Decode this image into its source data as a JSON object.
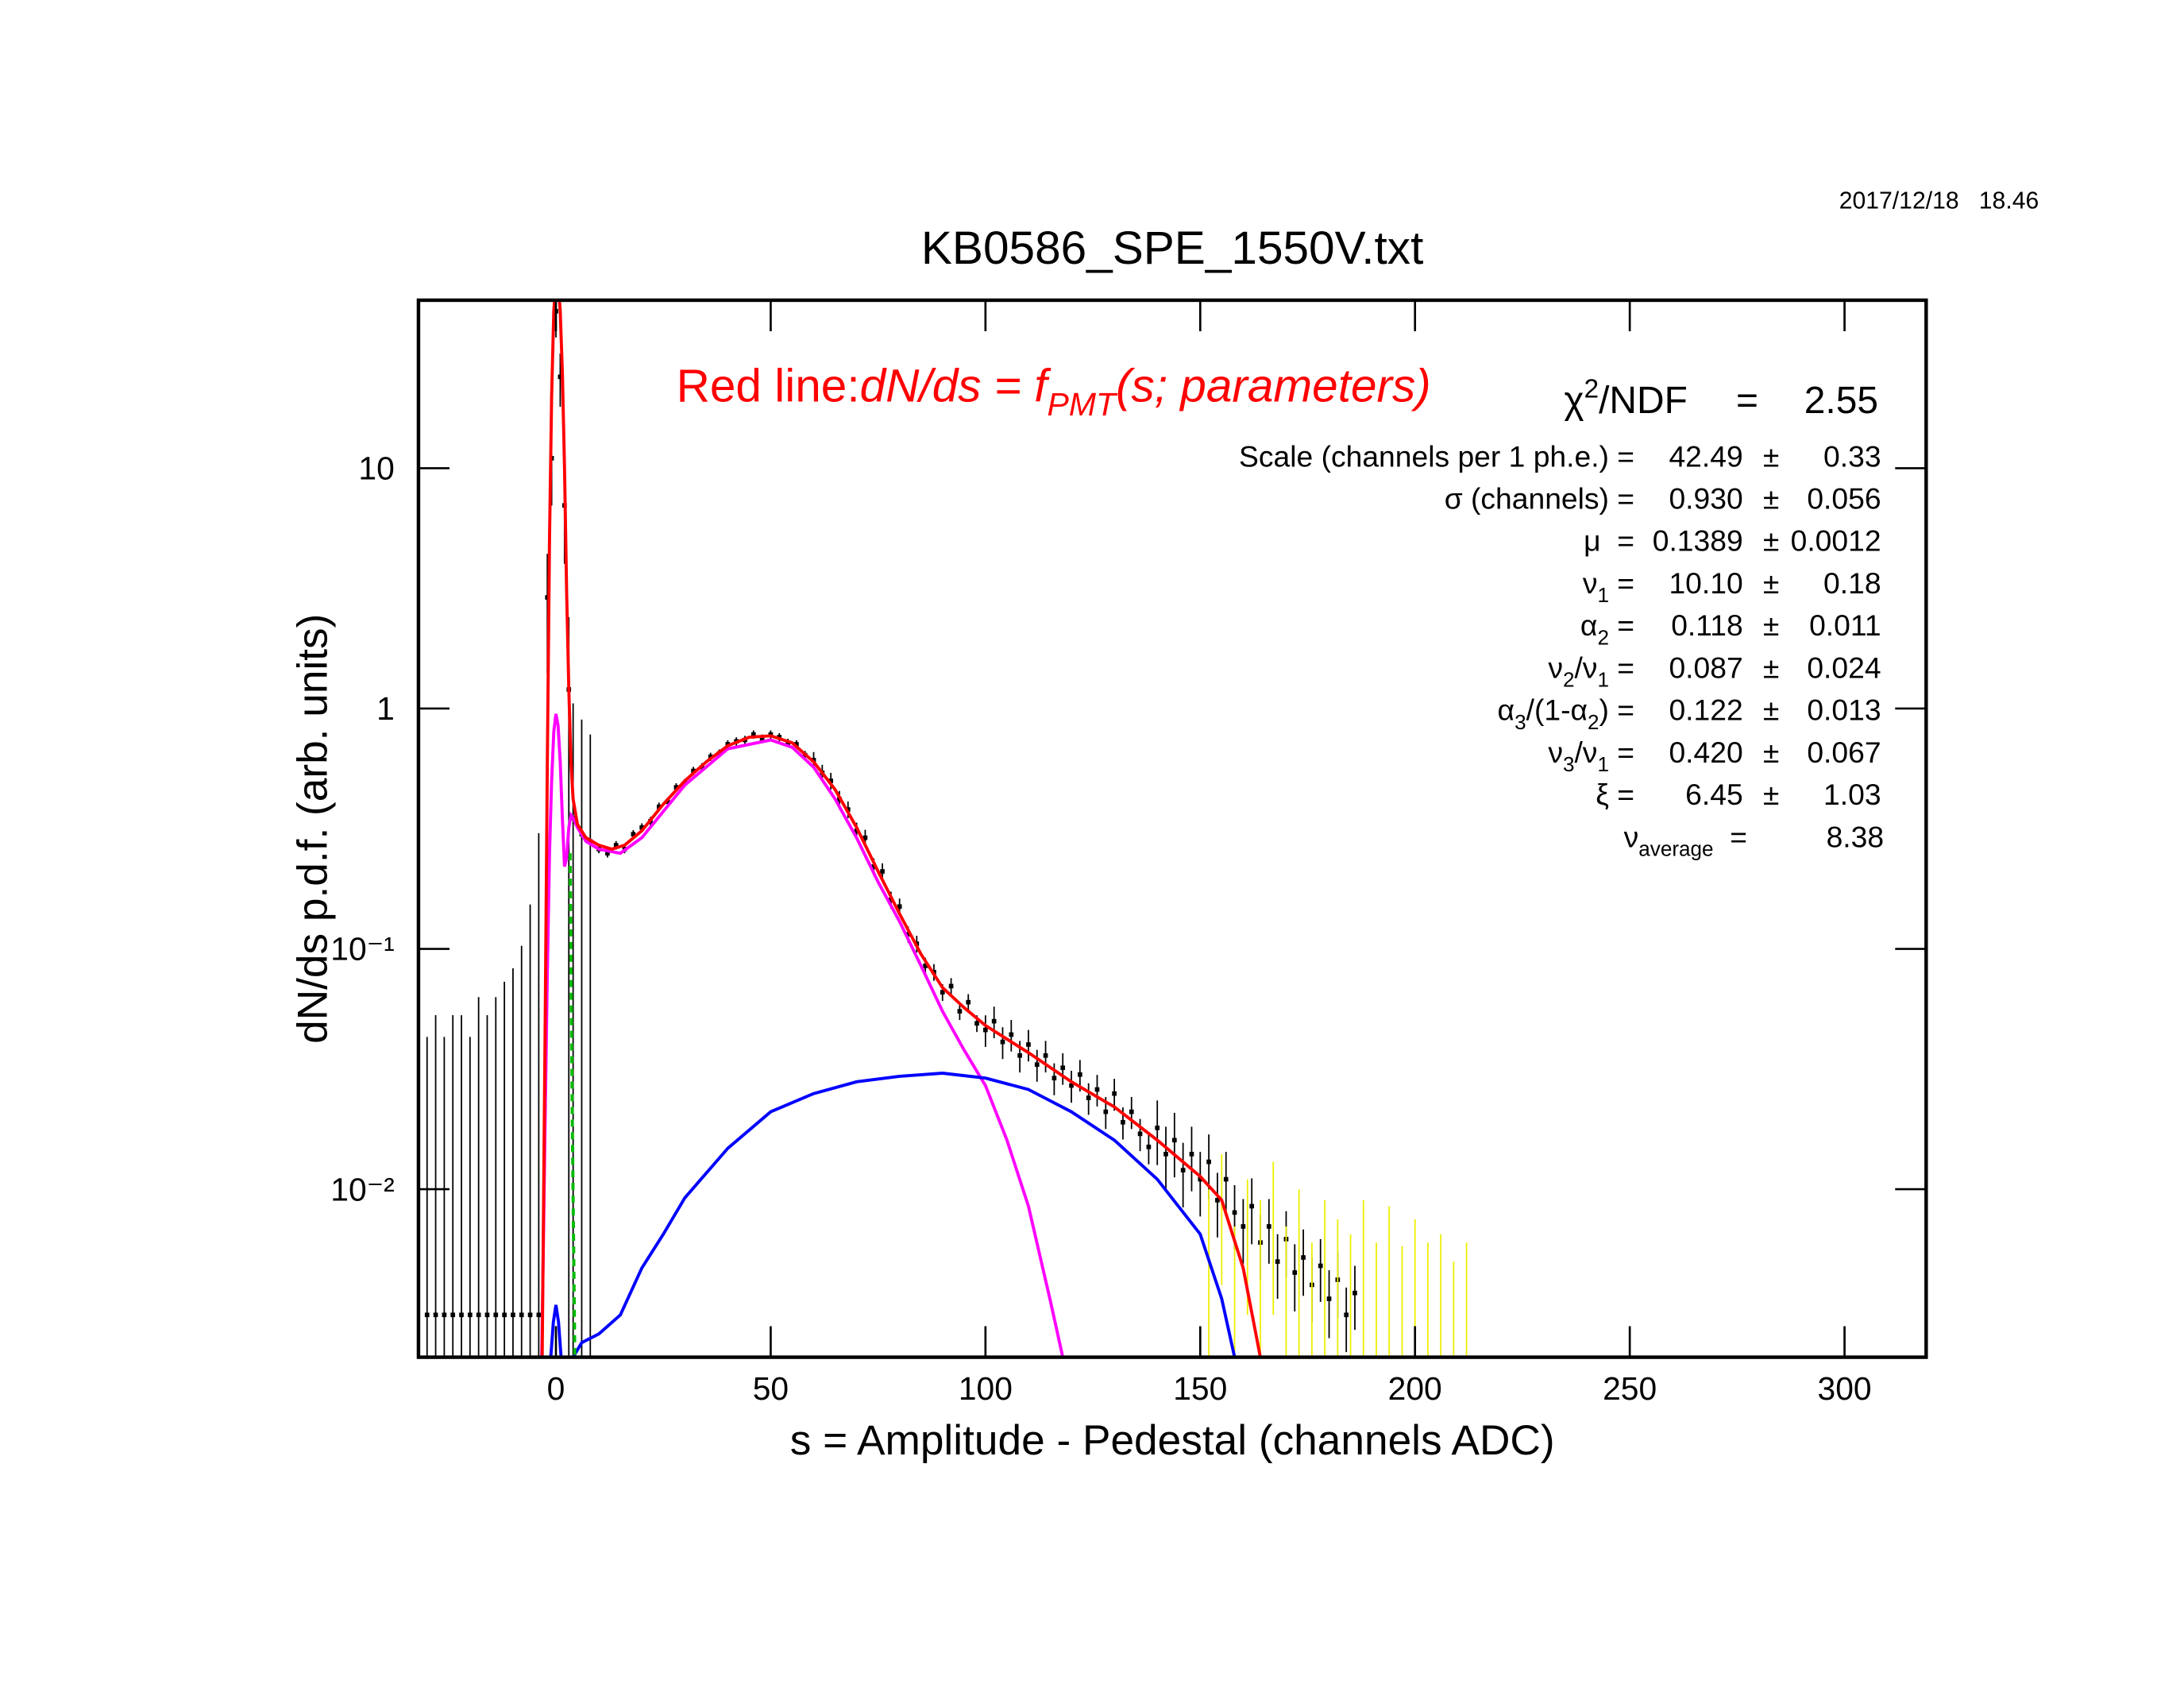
{
  "chart_data": {
    "type": "scatter",
    "title": "KB0586_SPE_1550V.txt",
    "date": "2017/12/18   18.46",
    "x_label": "s = Amplitude - Pedestal (channels ADC)",
    "y_label": "dN/ds p.d.f. (arb. units)",
    "xlim": [
      -32,
      319
    ],
    "ylim": [
      0.002,
      50
    ],
    "log_y": true,
    "xticks": [
      0,
      50,
      100,
      150,
      200,
      250,
      300
    ],
    "yticks": [
      {
        "value": 0.01,
        "label": "10⁻²"
      },
      {
        "value": 0.1,
        "label": "10⁻¹"
      },
      1,
      10
    ],
    "annotation": [
      {
        "text": "Red line:"
      },
      {
        "text": "dN/ds = f",
        "italic": true
      },
      {
        "sub": "PMT",
        "italic": true
      },
      {
        "text": "(s; parameters)",
        "italic": true
      }
    ],
    "chi2": {
      "label": [
        {
          "text": "χ"
        },
        {
          "sup": "2"
        },
        {
          "text": "/NDF"
        }
      ],
      "eq": "=",
      "value": "2.55"
    },
    "stats": [
      {
        "label": [
          {
            "text": "Scale (channels per 1 ph.e.) ="
          }
        ],
        "value": "42.49",
        "pm": "±",
        "error": "0.33"
      },
      {
        "label": [
          {
            "text": "σ (channels) ="
          }
        ],
        "value": "0.930",
        "pm": "±",
        "error": "0.056"
      },
      {
        "label": [
          {
            "text": "μ  ="
          }
        ],
        "value": "0.1389",
        "pm": "±",
        "error": "0.0012"
      },
      {
        "label": [
          {
            "text": "ν"
          },
          {
            "sub": "1"
          },
          {
            "text": " ="
          }
        ],
        "value": "10.10",
        "pm": "±",
        "error": "0.18"
      },
      {
        "label": [
          {
            "text": "α"
          },
          {
            "sub": "2"
          },
          {
            "text": " ="
          }
        ],
        "value": "0.118",
        "pm": "±",
        "error": "0.011"
      },
      {
        "label": [
          {
            "text": "ν"
          },
          {
            "sub": "2"
          },
          {
            "text": "/ν"
          },
          {
            "sub": "1"
          },
          {
            "text": " ="
          }
        ],
        "value": "0.087",
        "pm": "±",
        "error": "0.024"
      },
      {
        "label": [
          {
            "text": "α"
          },
          {
            "sub": "3"
          },
          {
            "text": "/(1-α"
          },
          {
            "sub": "2"
          },
          {
            "text": ") ="
          }
        ],
        "value": "0.122",
        "pm": "±",
        "error": "0.013"
      },
      {
        "label": [
          {
            "text": "ν"
          },
          {
            "sub": "3"
          },
          {
            "text": "/ν"
          },
          {
            "sub": "1"
          },
          {
            "text": " ="
          }
        ],
        "value": "0.420",
        "pm": "±",
        "error": "0.067"
      },
      {
        "label": [
          {
            "text": "ξ ="
          }
        ],
        "value": "6.45",
        "pm": "±",
        "error": "1.03"
      },
      {
        "label": [
          {
            "text": "ν"
          },
          {
            "sub": "average"
          },
          {
            "text": "  ="
          }
        ],
        "value": "8.38"
      }
    ],
    "series": [
      {
        "type": "errorbar",
        "color": "#000000",
        "marker": true,
        "x": [
          -30,
          -28,
          -26,
          -24,
          -22,
          -20,
          -18,
          -16,
          -14,
          -12,
          -10,
          -8,
          -6,
          -4,
          -2,
          -1,
          0,
          1,
          2,
          3,
          4,
          6,
          8,
          10,
          12,
          14,
          16,
          18,
          20,
          22,
          24,
          26,
          28,
          30,
          32,
          34,
          36,
          38,
          40,
          42,
          44,
          46,
          48,
          50,
          52,
          54,
          56,
          58,
          60,
          62,
          64,
          66,
          68,
          70,
          72,
          74,
          76,
          78,
          80,
          82,
          84,
          86,
          88,
          90,
          92,
          94,
          96,
          98,
          100,
          102,
          104,
          106,
          108,
          110,
          112,
          114,
          116,
          118,
          120,
          122,
          124,
          126,
          128,
          130,
          132,
          134,
          136,
          138,
          140,
          142,
          144,
          146,
          148,
          150,
          152,
          154,
          156,
          158,
          160,
          162,
          164,
          166,
          168,
          170,
          172,
          174,
          176,
          178,
          180,
          182,
          184,
          186
        ],
        "values": [
          0.003,
          0.003,
          0.003,
          0.003,
          0.003,
          0.003,
          0.003,
          0.003,
          0.003,
          0.003,
          0.003,
          0.003,
          0.003,
          0.003,
          2.9,
          11,
          45,
          24,
          7,
          1.2,
          0.35,
          0.3,
          0.28,
          0.26,
          0.25,
          0.27,
          0.26,
          0.3,
          0.32,
          0.34,
          0.39,
          0.41,
          0.47,
          0.49,
          0.55,
          0.57,
          0.63,
          0.65,
          0.71,
          0.73,
          0.74,
          0.78,
          0.75,
          0.78,
          0.76,
          0.72,
          0.71,
          0.64,
          0.61,
          0.54,
          0.5,
          0.42,
          0.38,
          0.31,
          0.29,
          0.22,
          0.21,
          0.16,
          0.15,
          0.115,
          0.105,
          0.085,
          0.08,
          0.066,
          0.07,
          0.055,
          0.06,
          0.049,
          0.046,
          0.05,
          0.041,
          0.044,
          0.036,
          0.04,
          0.033,
          0.036,
          0.029,
          0.032,
          0.027,
          0.03,
          0.024,
          0.026,
          0.021,
          0.025,
          0.019,
          0.021,
          0.017,
          0.015,
          0.018,
          0.014,
          0.016,
          0.012,
          0.014,
          0.011,
          0.013,
          0.009,
          0.011,
          0.008,
          0.007,
          0.0085,
          0.006,
          0.007,
          0.005,
          0.0062,
          0.0045,
          0.0052,
          0.004,
          0.0048,
          0.0035,
          0.0042,
          0.003,
          0.0037
        ],
        "errors": [
          0.04,
          0.05,
          0.04,
          0.05,
          0.05,
          0.04,
          0.06,
          0.05,
          0.06,
          0.07,
          0.08,
          0.1,
          0.15,
          0.3,
          1.5,
          4,
          10,
          6,
          3,
          1.2,
          0.7,
          0.6,
          0.5,
          0.01,
          0.01,
          0.011,
          0.01,
          0.012,
          0.013,
          0.014,
          0.016,
          0.016,
          0.019,
          0.02,
          0.022,
          0.023,
          0.025,
          0.026,
          0.028,
          0.029,
          0.03,
          0.031,
          0.03,
          0.031,
          0.03,
          0.029,
          0.028,
          0.026,
          0.049,
          0.043,
          0.04,
          0.034,
          0.03,
          0.025,
          0.023,
          0.018,
          0.017,
          0.013,
          0.012,
          0.009,
          0.0084,
          0.0068,
          0.0064,
          0.0053,
          0.0056,
          0.0044,
          0.0048,
          0.0039,
          0.0069,
          0.0075,
          0.0062,
          0.0066,
          0.0054,
          0.006,
          0.005,
          0.0054,
          0.0044,
          0.0048,
          0.0041,
          0.0045,
          0.0036,
          0.0039,
          0.0032,
          0.0038,
          0.0029,
          0.0032,
          0.0026,
          0.0023,
          0.0054,
          0.0042,
          0.0048,
          0.0036,
          0.0042,
          0.0033,
          0.0039,
          0.0027,
          0.0033,
          0.0024,
          0.0021,
          0.0026,
          0.0018,
          0.0021,
          0.0015,
          0.0019,
          0.0014,
          0.0016,
          0.0012,
          0.0014,
          0.0011,
          0.0013,
          0.0009,
          0.0011
        ]
      },
      {
        "type": "errorbar",
        "color": "#eeee00",
        "marker": false,
        "x": [
          152,
          155,
          158,
          161,
          164,
          167,
          170,
          173,
          176,
          179,
          182,
          185,
          188,
          191,
          194,
          197,
          200,
          203,
          206,
          209,
          212
        ],
        "values": [
          0.006,
          0.009,
          0.004,
          0.007,
          0.005,
          0.008,
          0.004,
          0.006,
          0.003,
          0.005,
          0.004,
          0.0035,
          0.005,
          0.003,
          0.0045,
          0.0028,
          0.004,
          0.003,
          0.0035,
          0.0025,
          0.003
        ],
        "errors": [
          0.004,
          0.005,
          0.003,
          0.004,
          0.004,
          0.005,
          0.003,
          0.004,
          0.003,
          0.004,
          0.0035,
          0.003,
          0.004,
          0.003,
          0.004,
          0.003,
          0.0035,
          0.003,
          0.003,
          0.0025,
          0.003
        ]
      },
      {
        "type": "line",
        "color": "#ff00ff",
        "x": [
          -3.3,
          -2.5,
          -2,
          -1.5,
          -1,
          -0.5,
          0,
          0.5,
          1,
          1.5,
          2,
          2.5,
          3,
          3.5,
          4,
          5,
          7,
          10,
          15,
          20,
          30,
          40,
          50,
          55,
          60,
          65,
          70,
          75,
          80,
          85,
          90,
          95,
          100,
          105,
          110,
          115,
          118
        ],
        "values": [
          0.002,
          0.02,
          0.08,
          0.25,
          0.5,
          0.8,
          0.95,
          0.85,
          0.6,
          0.35,
          0.22,
          0.24,
          0.32,
          0.36,
          0.35,
          0.32,
          0.28,
          0.26,
          0.25,
          0.29,
          0.48,
          0.68,
          0.74,
          0.69,
          0.57,
          0.42,
          0.29,
          0.19,
          0.13,
          0.085,
          0.055,
          0.038,
          0.027,
          0.016,
          0.0085,
          0.0035,
          0.002
        ]
      },
      {
        "type": "line",
        "color": "#0000ff",
        "x": [
          -1.2,
          -0.6,
          0,
          0.6,
          1.2,
          2.5,
          4,
          6,
          10,
          15,
          20,
          25,
          30,
          40,
          50,
          60,
          70,
          80,
          90,
          100,
          110,
          120,
          130,
          140,
          150,
          155,
          158
        ],
        "values": [
          0.002,
          0.0028,
          0.0033,
          0.0028,
          0.002,
          null,
          0.002,
          0.0023,
          0.0025,
          0.003,
          0.0047,
          0.0065,
          0.0092,
          0.0148,
          0.021,
          0.025,
          0.028,
          0.0295,
          0.0304,
          0.029,
          0.026,
          0.021,
          0.016,
          0.011,
          0.0065,
          0.0035,
          0.002
        ]
      },
      {
        "type": "line",
        "color": "#00bb00",
        "dash": true,
        "x": [
          3.3,
          3.8,
          4.4
        ],
        "values": [
          0.25,
          0.02,
          0.002
        ]
      },
      {
        "type": "line",
        "color": "#ff0000",
        "x": [
          -3.2,
          -2.5,
          -2,
          -1.5,
          -1,
          -0.5,
          0,
          0.5,
          1,
          1.5,
          2,
          2.5,
          3,
          3.5,
          4,
          5,
          7,
          10,
          13,
          16,
          20,
          25,
          30,
          35,
          40,
          45,
          50,
          55,
          60,
          65,
          70,
          75,
          80,
          85,
          90,
          95,
          100,
          110,
          120,
          130,
          140,
          150,
          155,
          160,
          164
        ],
        "values": [
          0.002,
          0.05,
          0.6,
          5,
          20,
          45,
          60,
          60,
          45,
          25,
          10,
          3,
          1.2,
          0.6,
          0.42,
          0.33,
          0.29,
          0.27,
          0.26,
          0.27,
          0.31,
          0.4,
          0.5,
          0.6,
          0.7,
          0.76,
          0.77,
          0.72,
          0.6,
          0.46,
          0.32,
          0.21,
          0.14,
          0.095,
          0.069,
          0.057,
          0.048,
          0.037,
          0.028,
          0.022,
          0.016,
          0.0113,
          0.009,
          0.0047,
          0.002
        ]
      }
    ]
  }
}
